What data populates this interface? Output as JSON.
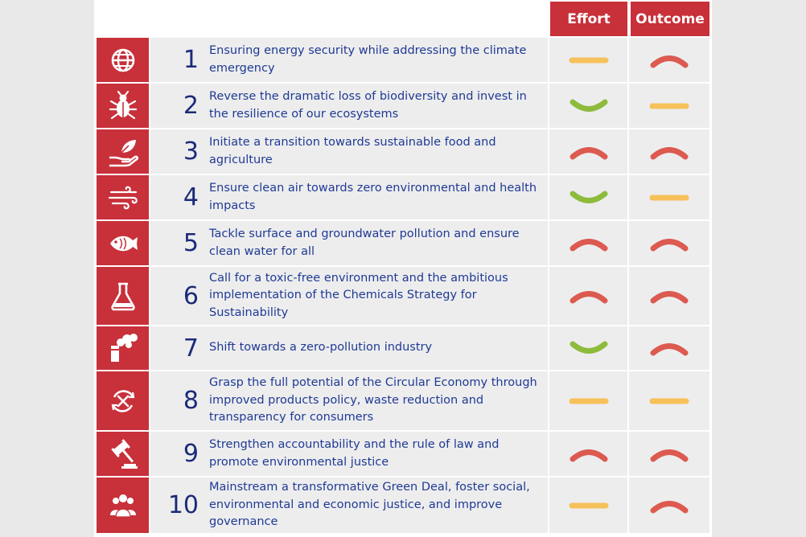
{
  "header": {
    "effort_label": "Effort",
    "outcome_label": "Outcome"
  },
  "rating_colors": {
    "good": "#8dbb3c",
    "neutral": "#f6c15a",
    "bad": "#dc5a50"
  },
  "rows": [
    {
      "number": "1",
      "icon": "globe-icon",
      "text": "Ensuring energy security while addressing the climate emergency",
      "effort": "neutral",
      "outcome": "bad"
    },
    {
      "number": "2",
      "icon": "bug-icon",
      "text": "Reverse the dramatic loss of biodiversity and invest in the resilience of our ecosystems",
      "effort": "good",
      "outcome": "neutral"
    },
    {
      "number": "3",
      "icon": "hand-leaf-icon",
      "text": "Initiate a transition towards sustainable food and agriculture",
      "effort": "bad",
      "outcome": "bad"
    },
    {
      "number": "4",
      "icon": "wind-icon",
      "text": "Ensure clean air towards zero environmental and health impacts",
      "effort": "good",
      "outcome": "neutral"
    },
    {
      "number": "5",
      "icon": "fish-icon",
      "text": "Tackle surface and groundwater pollution and ensure clean water for all",
      "effort": "bad",
      "outcome": "bad"
    },
    {
      "number": "6",
      "icon": "flask-icon",
      "text": "Call for a toxic-free environment and the ambitious implementation of the Chemicals Strategy for Sustainability",
      "effort": "bad",
      "outcome": "bad"
    },
    {
      "number": "7",
      "icon": "factory-icon",
      "text": "Shift towards a zero-pollution industry",
      "effort": "good",
      "outcome": "bad"
    },
    {
      "number": "8",
      "icon": "circular-tools-icon",
      "text": "Grasp the full potential of the Circular Economy through improved products policy, waste reduction and transparency for consumers",
      "effort": "neutral",
      "outcome": "neutral"
    },
    {
      "number": "9",
      "icon": "gavel-icon",
      "text": "Strengthen accountability and the rule of law and promote environmental justice",
      "effort": "bad",
      "outcome": "bad"
    },
    {
      "number": "10",
      "icon": "people-icon",
      "text": "Mainstream a transformative Green Deal, foster social, environmental and economic justice, and improve governance",
      "effort": "neutral",
      "outcome": "bad"
    }
  ]
}
